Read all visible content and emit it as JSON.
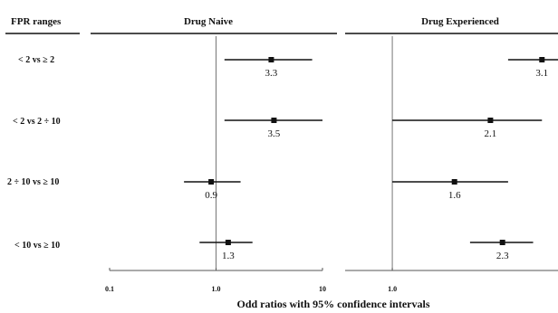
{
  "chart_data": {
    "type": "forest",
    "header_label": "FPR ranges",
    "xlabel": "Odd ratios with 95% confidence intervals",
    "x_scale": "log",
    "reference_line": 1.0,
    "rows": [
      "< 2  vs   ≥ 2",
      "< 2 vs 2 ÷ 10",
      "2 ÷ 10 vs  ≥ 10",
      "< 10 vs  ≥ 10"
    ],
    "panels": [
      {
        "title": "Drug Naive",
        "xlim": [
          0.1,
          10
        ],
        "ticks": [
          {
            "value": 0.1,
            "label": "0.1"
          },
          {
            "value": 1,
            "label": "1.0"
          },
          {
            "value": 10,
            "label": "10"
          }
        ],
        "points": [
          {
            "or": 3.3,
            "lo": 1.2,
            "hi": 8.0,
            "label": "3.3"
          },
          {
            "or": 3.5,
            "lo": 1.2,
            "hi": 10.0,
            "label": "3.5"
          },
          {
            "or": 0.9,
            "lo": 0.5,
            "hi": 1.7,
            "label": "0.9"
          },
          {
            "or": 1.3,
            "lo": 0.7,
            "hi": 2.2,
            "label": "1.3"
          }
        ]
      },
      {
        "title": "Drug Experienced",
        "xlim": [
          0.7,
          3.5
        ],
        "ticks": [
          {
            "value": 1,
            "label": "1.0"
          }
        ],
        "points": [
          {
            "or": 3.1,
            "lo": 2.4,
            "hi": 3.8,
            "label": "3.1"
          },
          {
            "or": 2.1,
            "lo": 1.0,
            "hi": 3.1,
            "label": "2.1"
          },
          {
            "or": 1.6,
            "lo": 1.0,
            "hi": 2.4,
            "label": "1.6"
          },
          {
            "or": 2.3,
            "lo": 1.8,
            "hi": 2.9,
            "label": "2.3"
          }
        ]
      }
    ]
  }
}
